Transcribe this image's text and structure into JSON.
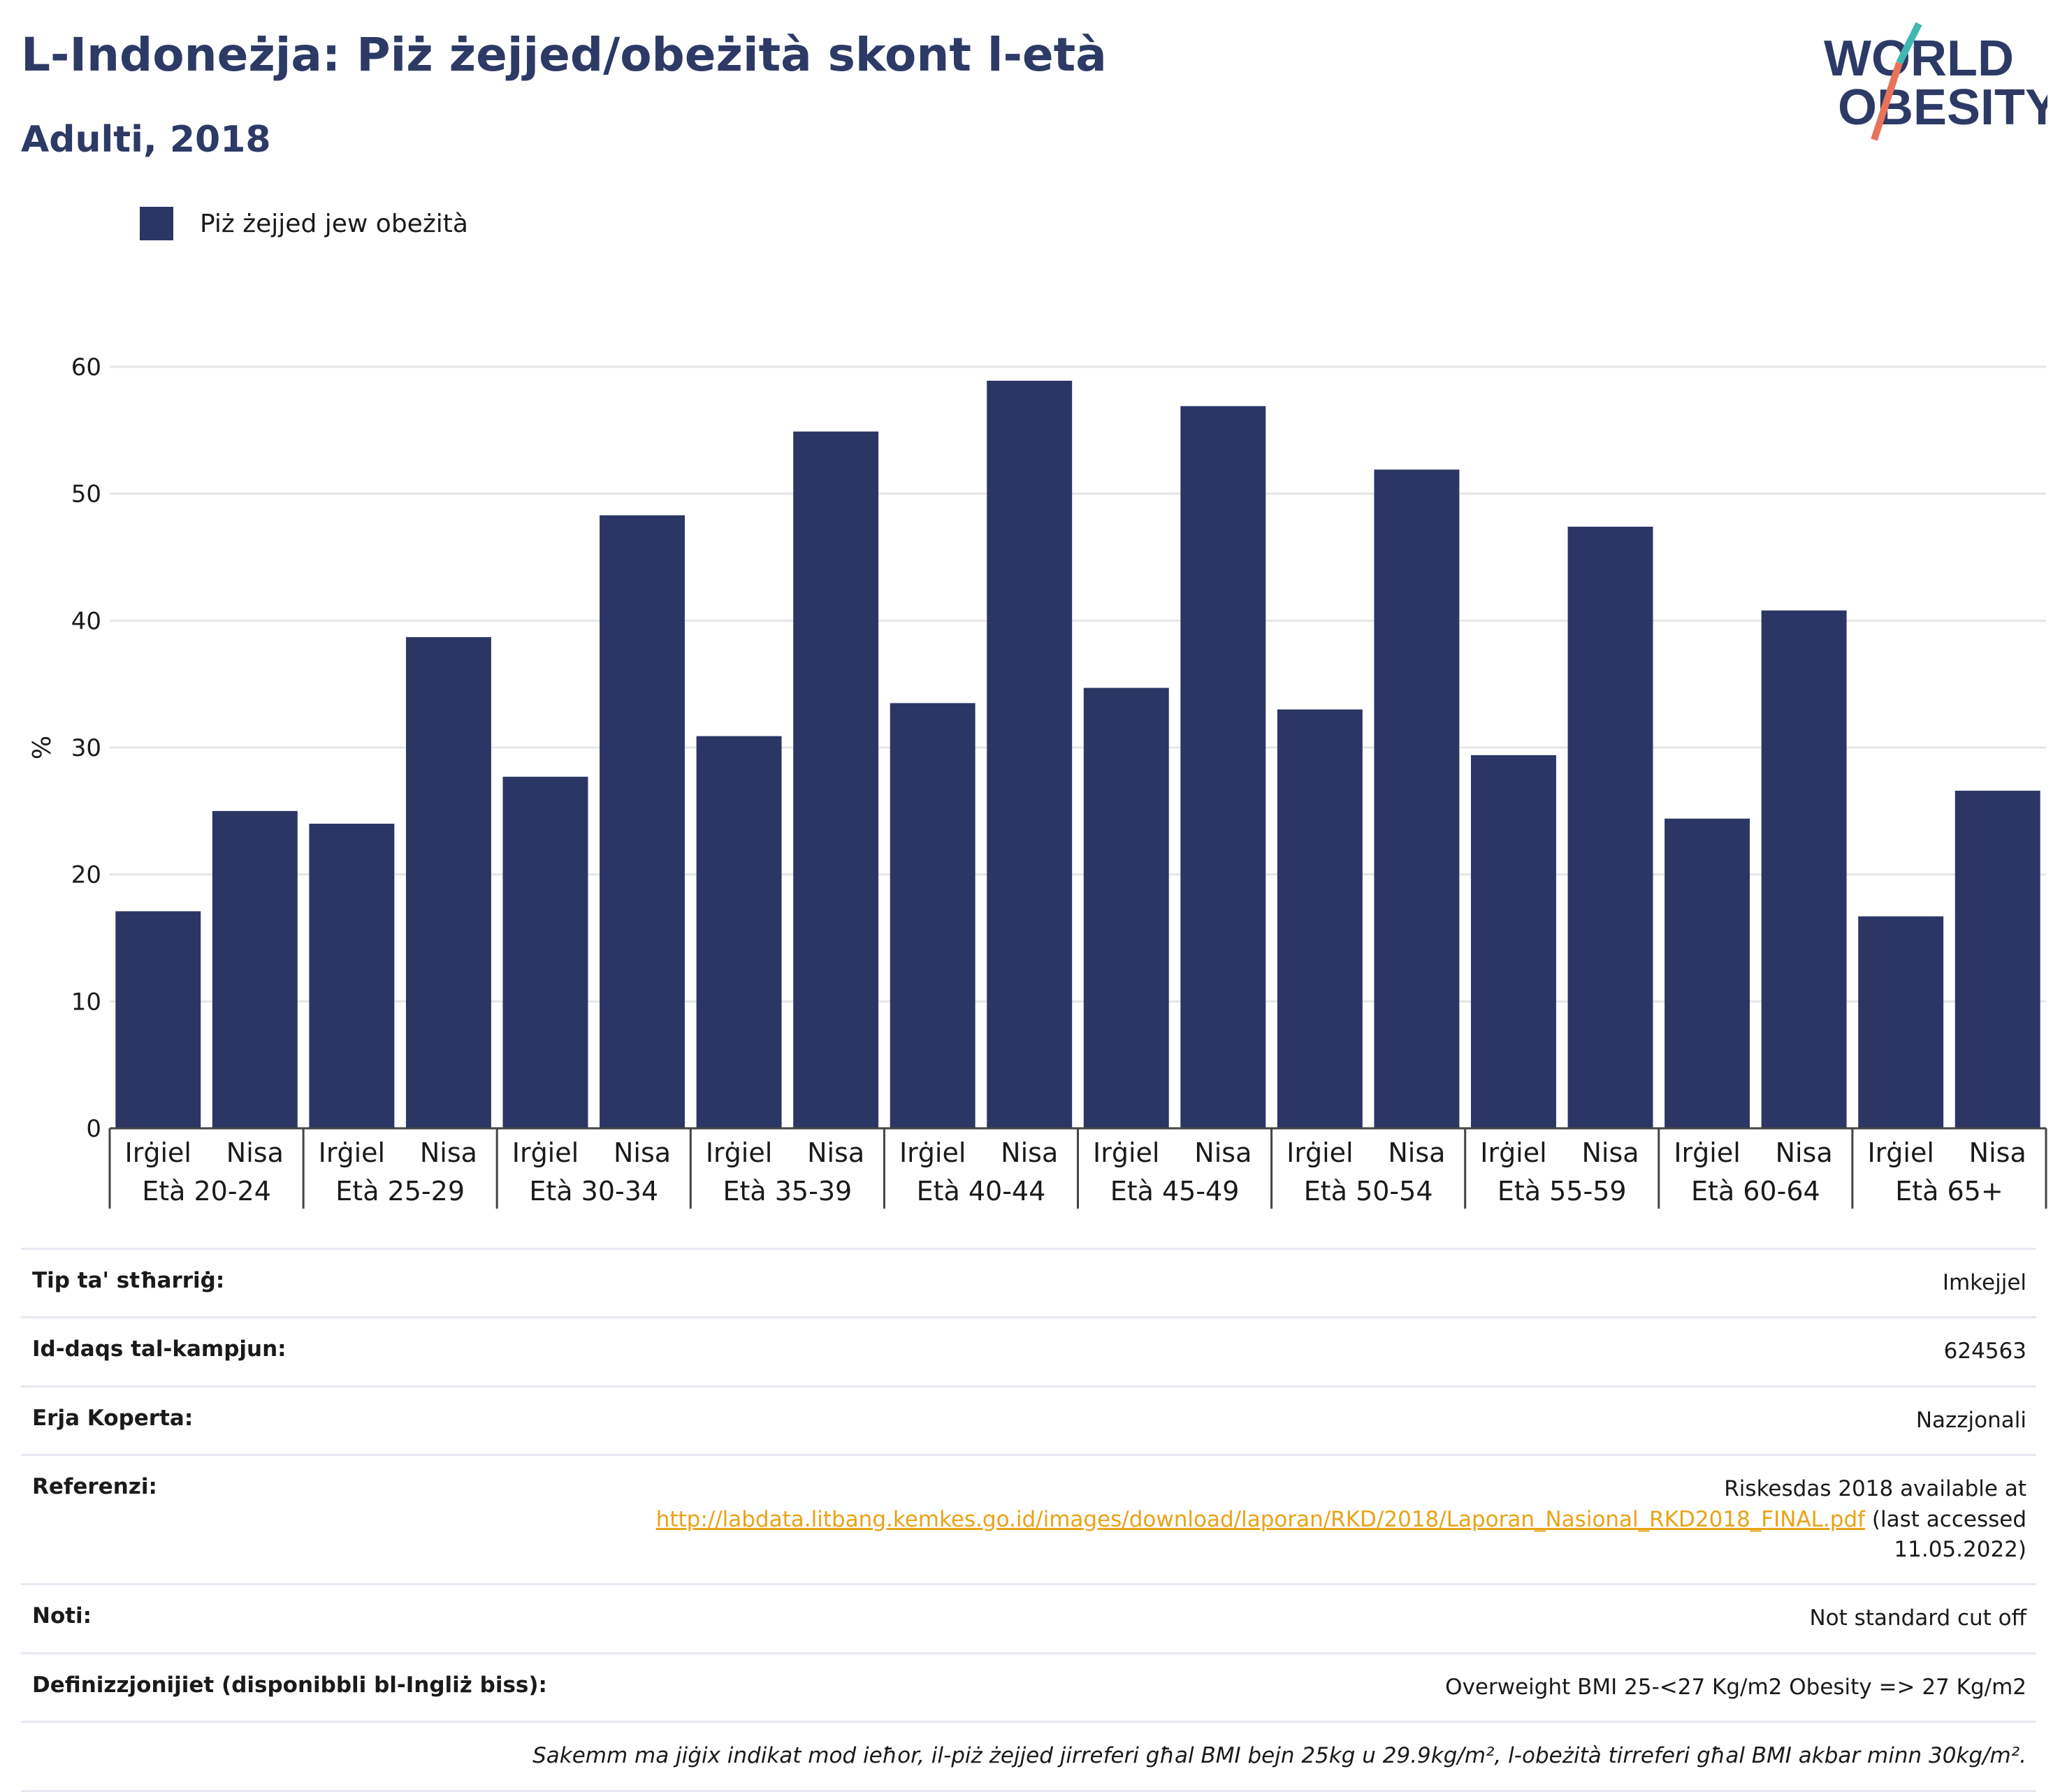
{
  "header": {
    "title": "L-Indoneżja: Piż żejjed/obeżità skont l-età",
    "subtitle": "Adulti, 2018"
  },
  "logo": {
    "line1": "WORLD",
    "line2": "OBESITY",
    "colors": {
      "text": "#2d3a66",
      "slash_top": "#3fb8b3",
      "slash_bottom": "#e8735a"
    }
  },
  "colors": {
    "bar": "#2b3664",
    "title": "#2d3a66",
    "grid": "#e6e6e6",
    "link": "#e8a317"
  },
  "chart_data": {
    "type": "bar",
    "ylabel": "%",
    "ylim": [
      0,
      60
    ],
    "yticks": [
      0,
      10,
      20,
      30,
      40,
      50,
      60
    ],
    "grid": true,
    "legend_position": "top-left",
    "series": [
      {
        "name": "Piż żejjed jew obeżità",
        "values": [
          17.1,
          25.0,
          24.0,
          38.7,
          27.7,
          48.3,
          30.9,
          54.9,
          33.5,
          58.9,
          34.7,
          56.9,
          33.0,
          51.9,
          29.4,
          47.4,
          24.4,
          40.8,
          16.7,
          26.6
        ]
      }
    ],
    "categories": [
      "Irġiel",
      "Nisa",
      "Irġiel",
      "Nisa",
      "Irġiel",
      "Nisa",
      "Irġiel",
      "Nisa",
      "Irġiel",
      "Nisa",
      "Irġiel",
      "Nisa",
      "Irġiel",
      "Nisa",
      "Irġiel",
      "Nisa",
      "Irġiel",
      "Nisa",
      "Irġiel",
      "Nisa"
    ],
    "groups": [
      "Età 20-24",
      "Età 25-29",
      "Età 30-34",
      "Età 35-39",
      "Età 40-44",
      "Età 45-49",
      "Età 50-54",
      "Età 55-59",
      "Età 60-64",
      "Età 65+"
    ]
  },
  "info_table": {
    "rows": [
      {
        "label": "Tip ta' stħarriġ:",
        "value": "Imkejjel"
      },
      {
        "label": "Id-daqs tal-kampjun:",
        "value": "624563"
      },
      {
        "label": "Erja Koperta:",
        "value": "Nazzjonali"
      },
      {
        "label": "Referenzi:",
        "value_pre": "Riskesdas 2018 available at",
        "link": "http://labdata.litbang.kemkes.go.id/images/download/laporan/RKD/2018/Laporan_Nasional_RKD2018_FINAL.pdf",
        "value_post": "(last accessed 11.05.2022)"
      },
      {
        "label": "Noti:",
        "value": "Not standard cut off"
      },
      {
        "label": "Definizzjonijiet (disponibbli bl-Ingliż biss):",
        "value": "Overweight BMI 25-<27 Kg/m2 Obesity => 27 Kg/m2"
      }
    ],
    "footnote": "Sakemm ma jiġix indikat mod ieħor, il-piż żejjed jirreferi għal BMI bejn 25kg u 29.9kg/m², l-obeżità tirreferi għal BMI akbar minn 30kg/m²."
  }
}
